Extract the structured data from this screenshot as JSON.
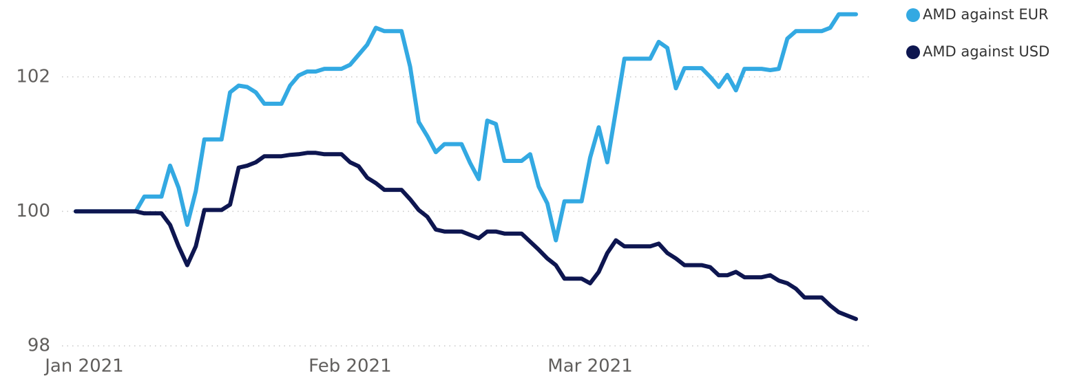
{
  "chart_data": {
    "type": "line",
    "categories": [
      null,
      "Jan 2021",
      null,
      null,
      null,
      null,
      null,
      null,
      null,
      null,
      null,
      null,
      null,
      null,
      null,
      null,
      null,
      null,
      null,
      null,
      null,
      null,
      null,
      null,
      null,
      null,
      null,
      null,
      null,
      null,
      null,
      null,
      "Feb 2021",
      null,
      null,
      null,
      null,
      null,
      null,
      null,
      null,
      null,
      null,
      null,
      null,
      null,
      null,
      null,
      null,
      null,
      null,
      null,
      null,
      null,
      null,
      null,
      null,
      null,
      null,
      null,
      "Mar 2021",
      null,
      null,
      null,
      null,
      null,
      null,
      null,
      null,
      null,
      null,
      null,
      null,
      null,
      null,
      null,
      null,
      null,
      null,
      null,
      null,
      null,
      null,
      null,
      null,
      null,
      null,
      null,
      null,
      null,
      null,
      null
    ],
    "series": [
      {
        "name": "AMD against EUR",
        "color": "#33a9e2",
        "values": [
          100.0,
          100.0,
          100.0,
          100.0,
          100.0,
          100.0,
          100.0,
          100.0,
          100.22,
          100.22,
          100.22,
          100.68,
          100.35,
          99.8,
          100.3,
          101.07,
          101.07,
          101.07,
          101.77,
          101.87,
          101.85,
          101.77,
          101.6,
          101.6,
          101.6,
          101.87,
          102.02,
          102.08,
          102.08,
          102.12,
          102.12,
          102.12,
          102.18,
          102.33,
          102.48,
          102.73,
          102.68,
          102.68,
          102.68,
          102.15,
          101.33,
          101.12,
          100.88,
          101.0,
          101.0,
          101.0,
          100.72,
          100.48,
          101.35,
          101.3,
          100.75,
          100.75,
          100.75,
          100.85,
          100.37,
          100.12,
          99.57,
          100.15,
          100.15,
          100.15,
          100.8,
          101.25,
          100.73,
          101.5,
          102.27,
          102.27,
          102.27,
          102.27,
          102.52,
          102.43,
          101.83,
          102.13,
          102.13,
          102.13,
          102.0,
          101.85,
          102.03,
          101.8,
          102.12,
          102.12,
          102.12,
          102.1,
          102.12,
          102.57,
          102.68,
          102.68,
          102.68,
          102.68,
          102.73,
          102.93,
          102.93,
          102.93
        ]
      },
      {
        "name": "AMD against USD",
        "color": "#0e1650",
        "values": [
          100.0,
          100.0,
          100.0,
          100.0,
          100.0,
          100.0,
          100.0,
          100.0,
          99.97,
          99.97,
          99.97,
          99.8,
          99.48,
          99.2,
          99.48,
          100.02,
          100.02,
          100.02,
          100.1,
          100.65,
          100.68,
          100.73,
          100.82,
          100.82,
          100.82,
          100.84,
          100.85,
          100.87,
          100.87,
          100.85,
          100.85,
          100.85,
          100.73,
          100.67,
          100.5,
          100.42,
          100.32,
          100.32,
          100.32,
          100.18,
          100.02,
          99.92,
          99.73,
          99.7,
          99.7,
          99.7,
          99.65,
          99.6,
          99.7,
          99.7,
          99.67,
          99.67,
          99.67,
          99.55,
          99.43,
          99.3,
          99.2,
          99.0,
          99.0,
          99.0,
          98.93,
          99.1,
          99.38,
          99.57,
          99.48,
          99.48,
          99.48,
          99.48,
          99.52,
          99.38,
          99.3,
          99.2,
          99.2,
          99.2,
          99.17,
          99.05,
          99.05,
          99.1,
          99.02,
          99.02,
          99.02,
          99.05,
          98.97,
          98.93,
          98.85,
          98.72,
          98.72,
          98.72,
          98.6,
          98.5,
          98.45,
          98.4
        ]
      }
    ],
    "ylim": [
      98,
      103
    ],
    "yticks": [
      98,
      100,
      102
    ],
    "grid": true,
    "legend": "top-right"
  }
}
